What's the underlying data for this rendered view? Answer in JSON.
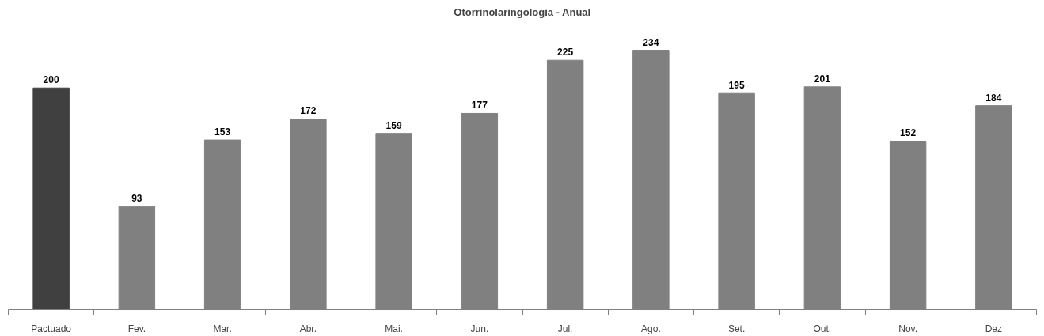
{
  "chart_data": {
    "type": "bar",
    "title": "Otorrinolaringologia - Anual",
    "categories": [
      "Pactuado",
      "Fev.",
      "Mar.",
      "Abr.",
      "Mai.",
      "Jun.",
      "Jul.",
      "Ago.",
      "Set.",
      "Out.",
      "Nov.",
      "Dez"
    ],
    "values": [
      200,
      93,
      153,
      172,
      159,
      177,
      225,
      234,
      195,
      201,
      152,
      184
    ],
    "colors": [
      "#404040",
      "#808080",
      "#808080",
      "#808080",
      "#808080",
      "#808080",
      "#808080",
      "#808080",
      "#808080",
      "#808080",
      "#808080",
      "#808080"
    ],
    "data_labels": true,
    "tick_labels": "x"
  }
}
